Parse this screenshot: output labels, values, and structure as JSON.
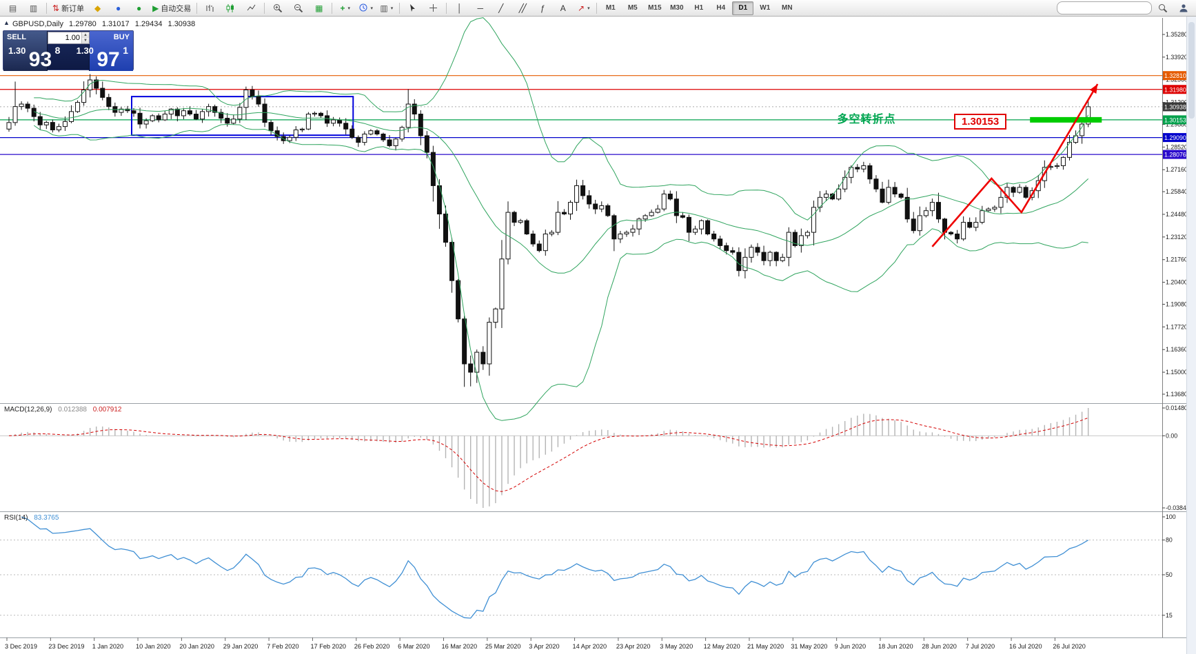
{
  "toolbar": {
    "new_order_label": "新订单",
    "autotrading_label": "自动交易",
    "timeframes": [
      "M1",
      "M5",
      "M15",
      "M30",
      "H1",
      "H4",
      "D1",
      "W1",
      "MN"
    ],
    "active_timeframe": "D1",
    "search_placeholder": ""
  },
  "icons": {
    "oneclick_toggle": "▲",
    "new_chart": "▤",
    "profiles": "▥",
    "new_order": "⇅",
    "metaeditor": "◆",
    "mql5": "●",
    "datawindow": "●",
    "autoplay": "▶",
    "tile": "▦",
    "indicators": "+",
    "crosshair": "+",
    "vline": "│",
    "hline": "─",
    "trendline": "╱",
    "channel": "╱╱",
    "fibonacci": "ƒ",
    "text_tool": "A",
    "arrows_tool": "↗",
    "caret": "▾"
  },
  "window_title": {
    "symbol": "GBPUSD,Daily",
    "o": "1.29780",
    "h": "1.31017",
    "l": "1.29434",
    "c": "1.30938"
  },
  "trade_panel": {
    "sell_label": "SELL",
    "buy_label": "BUY",
    "volume": "1.00",
    "sell_price_prefix": "1.30",
    "sell_price_big": "93",
    "sell_price_sup": "8",
    "buy_price_prefix": "1.30",
    "buy_price_big": "97",
    "buy_price_sup": "1"
  },
  "chart_data": {
    "type": "candlestick",
    "symbol": "GBPUSD",
    "timeframe": "Daily",
    "first_open": 1.296,
    "close": [
      1.2999,
      1.3095,
      1.311,
      1.3085,
      1.3035,
      1.2985,
      1.3,
      1.2955,
      1.2975,
      1.3005,
      1.3065,
      1.312,
      1.3195,
      1.3255,
      1.3205,
      1.315,
      1.3095,
      1.306,
      1.308,
      1.307,
      1.3055,
      1.299,
      1.301,
      1.304,
      1.3015,
      1.305,
      1.308,
      1.304,
      1.307,
      1.305,
      1.302,
      1.3065,
      1.3095,
      1.306,
      1.3025,
      1.2995,
      1.302,
      1.309,
      1.3195,
      1.3155,
      1.311,
      1.3,
      1.295,
      1.2915,
      1.289,
      1.291,
      1.2955,
      1.296,
      1.305,
      1.3055,
      1.304,
      1.2995,
      1.3015,
      1.2995,
      1.296,
      1.291,
      1.288,
      1.293,
      1.295,
      1.293,
      1.2895,
      1.286,
      1.29,
      1.297,
      1.311,
      1.305,
      1.292,
      1.282,
      1.262,
      1.245,
      1.228,
      1.205,
      1.182,
      1.155,
      1.15,
      1.162,
      1.155,
      1.18,
      1.188,
      1.218,
      1.246,
      1.24,
      1.241,
      1.233,
      1.227,
      1.223,
      1.233,
      1.234,
      1.246,
      1.245,
      1.252,
      1.262,
      1.256,
      1.251,
      1.248,
      1.25,
      1.244,
      1.23,
      1.233,
      1.234,
      1.236,
      1.242,
      1.244,
      1.246,
      1.248,
      1.257,
      1.254,
      1.244,
      1.243,
      1.234,
      1.236,
      1.241,
      1.233,
      1.23,
      1.226,
      1.223,
      1.222,
      1.211,
      1.219,
      1.225,
      1.222,
      1.217,
      1.222,
      1.217,
      1.219,
      1.234,
      1.226,
      1.232,
      1.234,
      1.249,
      1.255,
      1.257,
      1.254,
      1.26,
      1.267,
      1.273,
      1.272,
      1.274,
      1.266,
      1.26,
      1.252,
      1.261,
      1.257,
      1.255,
      1.242,
      1.235,
      1.244,
      1.247,
      1.252,
      1.242,
      1.234,
      1.233,
      1.23,
      1.24,
      1.237,
      1.24,
      1.247,
      1.248,
      1.249,
      1.255,
      1.261,
      1.258,
      1.261,
      1.255,
      1.259,
      1.265,
      1.273,
      1.2735,
      1.274,
      1.279,
      1.288,
      1.292,
      1.299,
      1.3094
    ],
    "wick_overrides": {
      "1": [
        1.3245,
        1.298
      ],
      "13": [
        1.329,
        1.315
      ],
      "38": [
        1.3215,
        1.3015
      ],
      "64": [
        1.32,
        1.294
      ],
      "73": [
        1.184,
        1.1412
      ],
      "74": [
        1.16,
        1.1415
      ],
      "117": [
        1.225,
        1.2075
      ]
    },
    "date_labels": [
      "3 Dec 2019",
      "23 Dec 2019",
      "1 Jan 2020",
      "10 Jan 2020",
      "20 Jan 2020",
      "29 Jan 2020",
      "7 Feb 2020",
      "17 Feb 2020",
      "26 Feb 2020",
      "6 Mar 2020",
      "16 Mar 2020",
      "25 Mar 2020",
      "3 Apr 2020",
      "14 Apr 2020",
      "23 Apr 2020",
      "3 May 2020",
      "12 May 2020",
      "21 May 2020",
      "31 May 2020",
      "9 Jun 2020",
      "18 Jun 2020",
      "28 Jun 2020",
      "7 Jul 2020",
      "16 Jul 2020",
      "26 Jul 2020"
    ],
    "label_every": 7,
    "price_axis_labels": [
      "1.35280",
      "1.33920",
      "1.32560",
      "1.31200",
      "1.29880",
      "1.28520",
      "1.27160",
      "1.25840",
      "1.24480",
      "1.23120",
      "1.21760",
      "1.20400",
      "1.19080",
      "1.17720",
      "1.16360",
      "1.15000",
      "1.13680"
    ],
    "bollinger": {
      "period": 20,
      "deviation": 2,
      "color": "#2fa45e"
    },
    "horizontal_lines": [
      {
        "label": "1.32810",
        "price": 1.3281,
        "color": "#e55b00"
      },
      {
        "label": "1.31980",
        "price": 1.3198,
        "color": "#dd0000"
      },
      {
        "label": "1.30153",
        "price": 1.30153,
        "color": "#00a14b"
      },
      {
        "label": "1.29090",
        "price": 1.2909,
        "color": "#0202cc"
      },
      {
        "label": "1.28076",
        "price": 1.28076,
        "color": "#2a0acc"
      }
    ],
    "last_price_box": {
      "label": "1.30938",
      "value": 1.30938,
      "color": "#3a3a3a"
    },
    "rectangle": {
      "from_index": 20,
      "to_index": 55.5,
      "top_price": 1.3155,
      "bottom_price": 1.2923,
      "color": "#0000dd"
    },
    "trend_arrow": {
      "color": "#ee0000",
      "points": [
        [
          148,
          1.2254
        ],
        [
          157.5,
          1.2663
        ],
        [
          162.3,
          1.246
        ],
        [
          174.5,
          1.323
        ]
      ]
    },
    "highlight_segment": {
      "from_index": 164,
      "to_index": 175.5,
      "price": 1.30153,
      "color": "#00cc00"
    },
    "annotations": [
      {
        "id": "turning-point",
        "text": "多空转折点",
        "color": "#00a651"
      },
      {
        "id": "price-callout",
        "text": "1.30153",
        "color": "#e00000"
      }
    ],
    "macd": {
      "label": "MACD(12,26,9)",
      "values": [
        "0.012388",
        "0.007912"
      ],
      "fast": 12,
      "slow": 26,
      "signal": 9,
      "scale_labels": [
        {
          "text": "0.014807",
          "v": 0.014807
        },
        {
          "text": "0.00",
          "v": 0
        },
        {
          "text": "-0.038415",
          "v": -0.038415
        }
      ],
      "histogram_color": "#b4b4b4",
      "signal_color": "#d40000"
    },
    "rsi": {
      "label": "RSI(14)",
      "value": "83.3765",
      "period": 14,
      "color": "#3f8fd4",
      "scale_labels": [
        {
          "text": "100",
          "v": 100
        },
        {
          "text": "80",
          "v": 80
        },
        {
          "text": "50",
          "v": 50
        },
        {
          "text": "15",
          "v": 15
        }
      ],
      "levels": [
        80,
        50,
        15
      ]
    }
  }
}
